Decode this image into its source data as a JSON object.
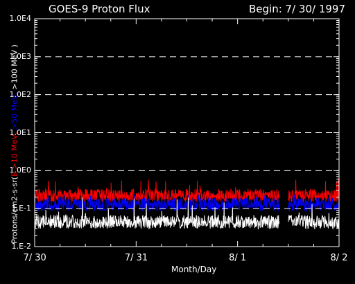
{
  "title_left": "GOES-9 Proton Flux",
  "title_right": "Begin: 7/ 30/ 1997",
  "chart_data": {
    "type": "line",
    "title": "GOES-9 Proton Flux",
    "xlabel": "Month/Day",
    "ylabel_parts": [
      {
        "text": "Protons/cm2-s-sr(",
        "color": "#ffffff"
      },
      {
        "text": "E >10 MeV, ",
        "color": "#ff0000"
      },
      {
        "text": ">50 MeV, ",
        "color": "#0000ff"
      },
      {
        "text": ">100 MeV )",
        "color": "#ffffff"
      }
    ],
    "y_scale": "log",
    "ylim": [
      0.01,
      10000
    ],
    "y_ticks": [
      {
        "value": 10000,
        "label": "1.0E4"
      },
      {
        "value": 1000,
        "label": "1.0E3"
      },
      {
        "value": 100,
        "label": "1.0E2"
      },
      {
        "value": 10,
        "label": "1.0E1"
      },
      {
        "value": 1,
        "label": "1.0E0"
      },
      {
        "value": 0.1,
        "label": "1.E-1"
      },
      {
        "value": 0.01,
        "label": "1.E-2"
      }
    ],
    "x_ticks": [
      "7/ 30",
      "7/ 31",
      "8/ 1",
      "8/ 2"
    ],
    "xlim_days": [
      0,
      3
    ],
    "grid": "dashed horizontal",
    "data_gaps_days": [
      [
        2.41,
        2.5
      ]
    ],
    "series": [
      {
        "color": "#ff0000",
        "mean": 0.22,
        "min": 0.15,
        "max": 0.6
      },
      {
        "color": "#0000ff",
        "mean": 0.13,
        "min": 0.08,
        "max": 0.25
      },
      {
        "color": "#ffffff",
        "mean": 0.045,
        "min": 0.028,
        "max": 0.2
      }
    ]
  }
}
